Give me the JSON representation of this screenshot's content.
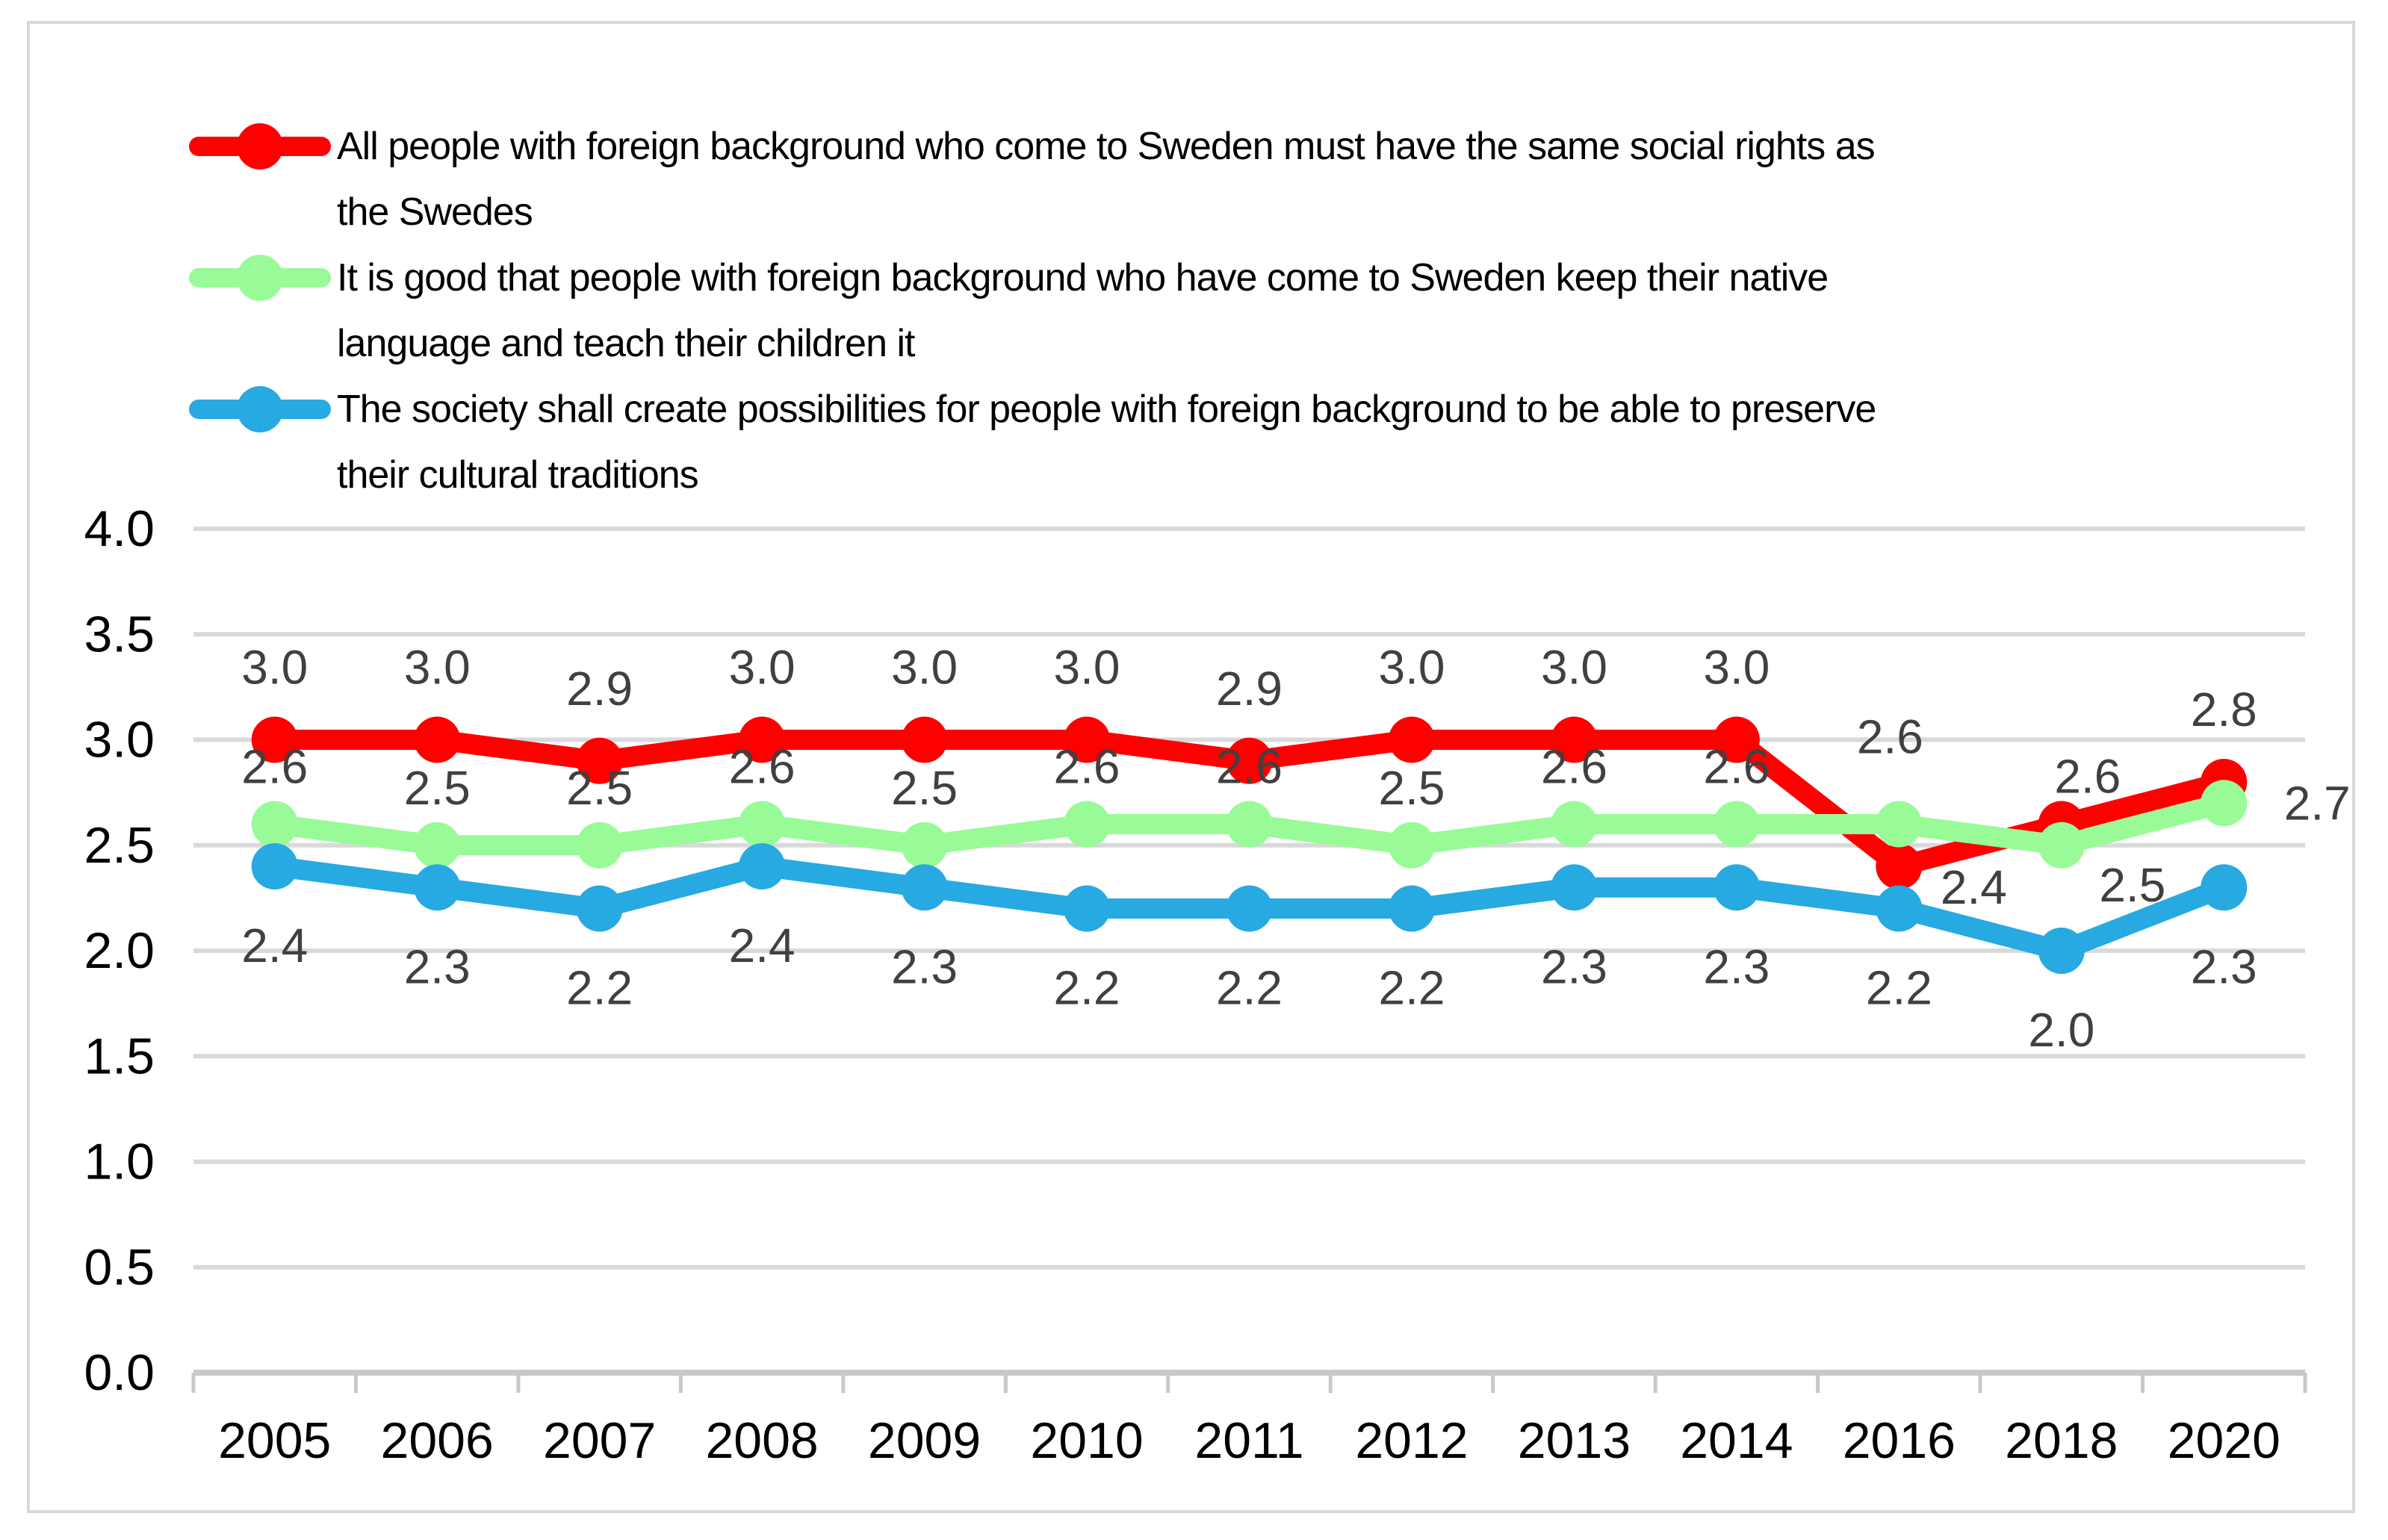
{
  "legend": {
    "items": [
      {
        "label": "All people with foreign background who come to Sweden must have the same social rights as\nthe Swedes",
        "color": "#FE0000"
      },
      {
        "label": "It is good that people with foreign background who have come to Sweden keep their native\nlanguage and teach their children it",
        "color": "#98FB98"
      },
      {
        "label": "The society shall create possibilities for people with foreign background to be able to preserve\ntheir cultural traditions",
        "color": "#27A9E1"
      }
    ]
  },
  "chart_data": {
    "type": "line",
    "categories": [
      "2005",
      "2006",
      "2007",
      "2008",
      "2009",
      "2010",
      "2011",
      "2012",
      "2013",
      "2014",
      "2016",
      "2018",
      "2020"
    ],
    "series": [
      {
        "name": "All people with foreign background who come to Sweden must have the same social rights as the Swedes",
        "color": "#FE0000",
        "values": [
          3.0,
          3.0,
          2.9,
          3.0,
          3.0,
          3.0,
          2.9,
          3.0,
          3.0,
          3.0,
          2.4,
          2.6,
          2.8
        ],
        "label_position": "above"
      },
      {
        "name": "It is good that people with foreign background who have come to Sweden keep their native language and teach their children it",
        "color": "#98FB98",
        "values": [
          2.6,
          2.5,
          2.5,
          2.6,
          2.5,
          2.6,
          2.6,
          2.5,
          2.6,
          2.6,
          2.6,
          2.5,
          2.7
        ],
        "label_position": "above"
      },
      {
        "name": "The society shall create possibilities for people with foreign background to be able to preserve their cultural traditions",
        "color": "#27A9E1",
        "values": [
          2.4,
          2.3,
          2.2,
          2.4,
          2.3,
          2.2,
          2.2,
          2.2,
          2.3,
          2.3,
          2.2,
          2.0,
          2.3
        ],
        "label_position": "below"
      }
    ],
    "title": "",
    "xlabel": "",
    "ylabel": "",
    "ylim": [
      0.0,
      4.0
    ],
    "ytick_step": 0.5,
    "ytick_labels": [
      "0.0",
      "0.5",
      "1.0",
      "1.5",
      "2.0",
      "2.5",
      "3.0",
      "3.5",
      "4.0"
    ],
    "grid": "horizontal",
    "legend_position": "top-left",
    "data_labels": true,
    "label_decimals": 1
  },
  "style": {
    "grid_color": "#D9D9D9",
    "axis_color": "#C8C8C8",
    "data_label_color": "#404040",
    "tick_label_color": "#000000",
    "border_color": "#D9D9D9",
    "background": "#FFFFFF"
  }
}
